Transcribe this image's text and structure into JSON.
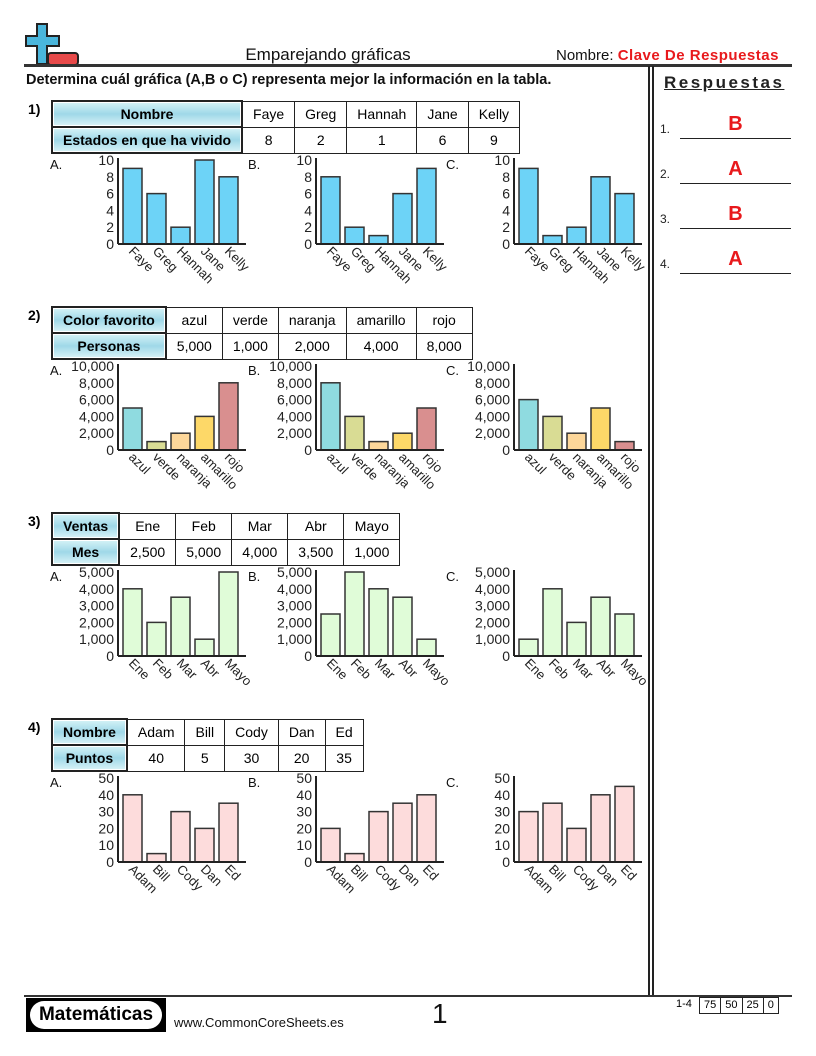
{
  "header": {
    "title": "Emparejando gráficas",
    "name_label": "Nombre:",
    "name_value": "Clave De Respuestas",
    "logo_icon": "plus-minus-icon"
  },
  "instructions": "Determina cuál gráfica (A,B o C) representa mejor la información en la tabla.",
  "answers": {
    "title": "Respuestas",
    "items": [
      {
        "num": "1.",
        "value": "B"
      },
      {
        "num": "2.",
        "value": "A"
      },
      {
        "num": "3.",
        "value": "B"
      },
      {
        "num": "4.",
        "value": "A"
      }
    ]
  },
  "problems": [
    {
      "num": "1)",
      "row1_header": "Nombre",
      "row1": [
        "Faye",
        "Greg",
        "Hannah",
        "Jane",
        "Kelly"
      ],
      "row2_header": "Estados en que ha vivido",
      "row2": [
        "8",
        "2",
        "1",
        "6",
        "9"
      ]
    },
    {
      "num": "2)",
      "row1_header": "Color favorito",
      "row1": [
        "azul",
        "verde",
        "naranja",
        "amarillo",
        "rojo"
      ],
      "row2_header": "Personas",
      "row2": [
        "5,000",
        "1,000",
        "2,000",
        "4,000",
        "8,000"
      ]
    },
    {
      "num": "3)",
      "row1_header": "Ventas",
      "row1": [
        "Ene",
        "Feb",
        "Mar",
        "Abr",
        "Mayo"
      ],
      "row2_header": "Mes",
      "row2": [
        "2,500",
        "5,000",
        "4,000",
        "3,500",
        "1,000"
      ]
    },
    {
      "num": "4)",
      "row1_header": "Nombre",
      "row1": [
        "Adam",
        "Bill",
        "Cody",
        "Dan",
        "Ed"
      ],
      "row2_header": "Puntos",
      "row2": [
        "40",
        "5",
        "30",
        "20",
        "35"
      ]
    }
  ],
  "chart_data": [
    {
      "type": "bar",
      "problem": 1,
      "option": "A.",
      "categories": [
        "Faye",
        "Greg",
        "Hannah",
        "Jane",
        "Kelly"
      ],
      "values": [
        9,
        6,
        2,
        10,
        8
      ],
      "ylim": [
        0,
        10
      ],
      "yticks": [
        "0",
        "2",
        "4",
        "6",
        "8",
        "10"
      ],
      "colors": [
        "#6dd3f7"
      ]
    },
    {
      "type": "bar",
      "problem": 1,
      "option": "B.",
      "categories": [
        "Faye",
        "Greg",
        "Hannah",
        "Jane",
        "Kelly"
      ],
      "values": [
        8,
        2,
        1,
        6,
        9
      ],
      "ylim": [
        0,
        10
      ],
      "yticks": [
        "0",
        "2",
        "4",
        "6",
        "8",
        "10"
      ],
      "colors": [
        "#6dd3f7"
      ]
    },
    {
      "type": "bar",
      "problem": 1,
      "option": "C.",
      "categories": [
        "Faye",
        "Greg",
        "Hannah",
        "Jane",
        "Kelly"
      ],
      "values": [
        9,
        1,
        2,
        8,
        6
      ],
      "ylim": [
        0,
        10
      ],
      "yticks": [
        "0",
        "2",
        "4",
        "6",
        "8",
        "10"
      ],
      "colors": [
        "#6dd3f7"
      ]
    },
    {
      "type": "bar",
      "problem": 2,
      "option": "A.",
      "categories": [
        "azul",
        "verde",
        "naranja",
        "amarillo",
        "rojo"
      ],
      "values": [
        5000,
        1000,
        2000,
        4000,
        8000
      ],
      "ylim": [
        0,
        10000
      ],
      "yticks": [
        "0",
        "2,000",
        "4,000",
        "6,000",
        "8,000",
        "10,000"
      ],
      "colors": [
        "#8fdbe0",
        "#d9dc94",
        "#fdd79a",
        "#fdd868",
        "#d98f8f"
      ]
    },
    {
      "type": "bar",
      "problem": 2,
      "option": "B.",
      "categories": [
        "azul",
        "verde",
        "naranja",
        "amarillo",
        "rojo"
      ],
      "values": [
        8000,
        4000,
        1000,
        2000,
        5000
      ],
      "ylim": [
        0,
        10000
      ],
      "yticks": [
        "0",
        "2,000",
        "4,000",
        "6,000",
        "8,000",
        "10,000"
      ],
      "colors": [
        "#8fdbe0",
        "#d9dc94",
        "#fdd79a",
        "#fdd868",
        "#d98f8f"
      ]
    },
    {
      "type": "bar",
      "problem": 2,
      "option": "C.",
      "categories": [
        "azul",
        "verde",
        "naranja",
        "amarillo",
        "rojo"
      ],
      "values": [
        6000,
        4000,
        2000,
        5000,
        1000
      ],
      "ylim": [
        0,
        10000
      ],
      "yticks": [
        "0",
        "2,000",
        "4,000",
        "6,000",
        "8,000",
        "10,000"
      ],
      "colors": [
        "#8fdbe0",
        "#d9dc94",
        "#fdd79a",
        "#fdd868",
        "#d98f8f"
      ]
    },
    {
      "type": "bar",
      "problem": 3,
      "option": "A.",
      "categories": [
        "Ene",
        "Feb",
        "Mar",
        "Abr",
        "Mayo"
      ],
      "values": [
        4000,
        2000,
        3500,
        1000,
        5000
      ],
      "ylim": [
        0,
        5000
      ],
      "yticks": [
        "0",
        "1,000",
        "2,000",
        "3,000",
        "4,000",
        "5,000"
      ],
      "colors": [
        "#e0fcd8"
      ]
    },
    {
      "type": "bar",
      "problem": 3,
      "option": "B.",
      "categories": [
        "Ene",
        "Feb",
        "Mar",
        "Abr",
        "Mayo"
      ],
      "values": [
        2500,
        5000,
        4000,
        3500,
        1000
      ],
      "ylim": [
        0,
        5000
      ],
      "yticks": [
        "0",
        "1,000",
        "2,000",
        "3,000",
        "4,000",
        "5,000"
      ],
      "colors": [
        "#e0fcd8"
      ]
    },
    {
      "type": "bar",
      "problem": 3,
      "option": "C.",
      "categories": [
        "Ene",
        "Feb",
        "Mar",
        "Abr",
        "Mayo"
      ],
      "values": [
        1000,
        4000,
        2000,
        3500,
        2500
      ],
      "ylim": [
        0,
        5000
      ],
      "yticks": [
        "0",
        "1,000",
        "2,000",
        "3,000",
        "4,000",
        "5,000"
      ],
      "colors": [
        "#e0fcd8"
      ]
    },
    {
      "type": "bar",
      "problem": 4,
      "option": "A.",
      "categories": [
        "Adam",
        "Bill",
        "Cody",
        "Dan",
        "Ed"
      ],
      "values": [
        40,
        5,
        30,
        20,
        35
      ],
      "ylim": [
        0,
        50
      ],
      "yticks": [
        "0",
        "10",
        "20",
        "30",
        "40",
        "50"
      ],
      "colors": [
        "#fddcdc"
      ]
    },
    {
      "type": "bar",
      "problem": 4,
      "option": "B.",
      "categories": [
        "Adam",
        "Bill",
        "Cody",
        "Dan",
        "Ed"
      ],
      "values": [
        20,
        5,
        30,
        35,
        40
      ],
      "ylim": [
        0,
        50
      ],
      "yticks": [
        "0",
        "10",
        "20",
        "30",
        "40",
        "50"
      ],
      "colors": [
        "#fddcdc"
      ]
    },
    {
      "type": "bar",
      "problem": 4,
      "option": "C.",
      "categories": [
        "Adam",
        "Bill",
        "Cody",
        "Dan",
        "Ed"
      ],
      "values": [
        30,
        35,
        20,
        40,
        45
      ],
      "ylim": [
        0,
        50
      ],
      "yticks": [
        "0",
        "10",
        "20",
        "30",
        "40",
        "50"
      ],
      "colors": [
        "#fddcdc"
      ]
    }
  ],
  "footer": {
    "brand": "Matemáticas",
    "site": "www.CommonCoreSheets.es",
    "page": "1",
    "range": "1-4",
    "scores": [
      "75",
      "50",
      "25",
      "0"
    ]
  }
}
